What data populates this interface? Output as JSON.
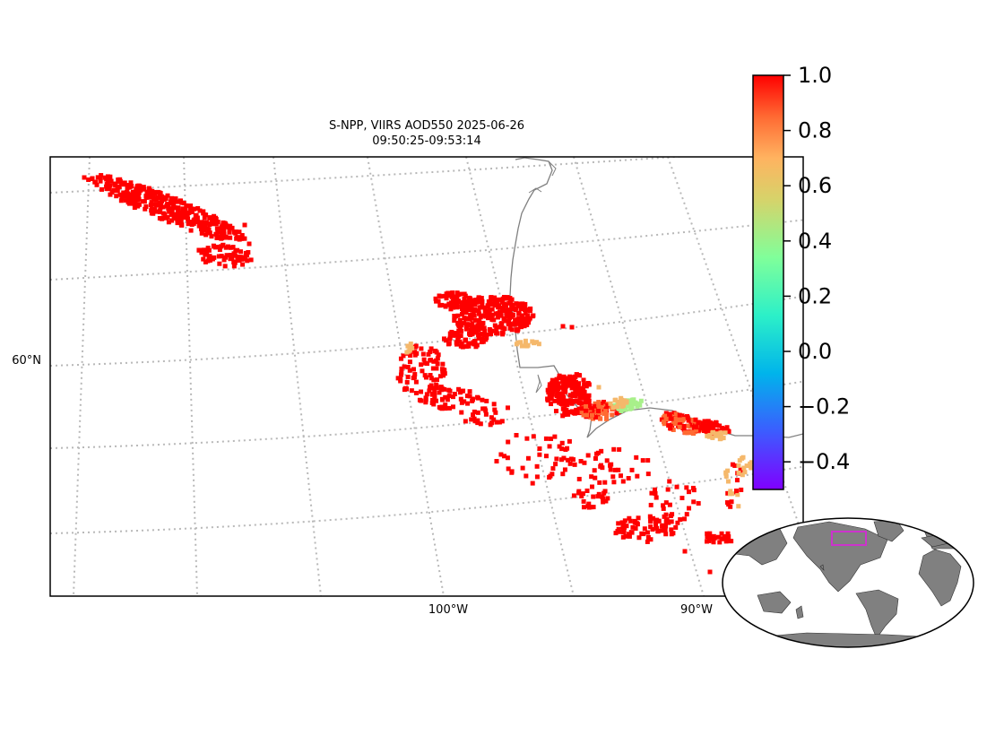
{
  "title": {
    "line1": "S-NPP, VIIRS AOD550 2025-06-26",
    "line2": "09:50:25-09:53:14"
  },
  "map": {
    "lat_labels": [
      "60°N"
    ],
    "lon_labels": [
      "100°W",
      "90°W"
    ],
    "gridline_style": "dotted",
    "gridline_color": "#b8b8b8",
    "coastline_color": "#808080"
  },
  "colorbar": {
    "ticks": [
      "1.0",
      "0.8",
      "0.6",
      "0.4",
      "0.2",
      "0.0",
      "−0.2",
      "−0.4"
    ],
    "colormap": "rainbow",
    "vmin": -0.5,
    "vmax": 1.0
  },
  "inset": {
    "land_color": "#808080",
    "highlight_color": "#cc33cc"
  },
  "colors": {
    "high": "#ff0000",
    "mid_high": "#ff6a33",
    "mid": "#f5b86b",
    "low": "#a8f08a"
  }
}
